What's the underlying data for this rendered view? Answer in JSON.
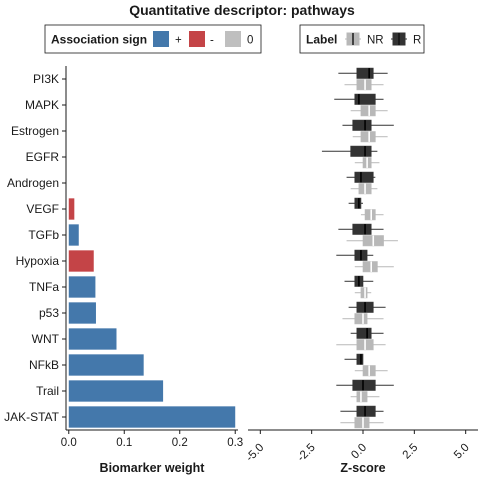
{
  "title": "Quantitative descriptor: pathways",
  "colors": {
    "positive": "#4478ab",
    "negative": "#c44447",
    "zero": "#bfbfbf",
    "R": "#333333",
    "NR": "#b8b8b8"
  },
  "legend_sign": {
    "title": "Association sign",
    "items": [
      {
        "label": "+",
        "color": "#4478ab"
      },
      {
        "label": "-",
        "color": "#c44447"
      },
      {
        "label": "0",
        "color": "#bfbfbf"
      }
    ]
  },
  "legend_label": {
    "title": "Label",
    "items": [
      {
        "label": "NR",
        "color": "#b8b8b8"
      },
      {
        "label": "R",
        "color": "#333333"
      }
    ]
  },
  "chart_data": [
    {
      "type": "bar",
      "orientation": "horizontal",
      "categories": [
        "PI3K",
        "MAPK",
        "Estrogen",
        "EGFR",
        "Androgen",
        "VEGF",
        "TGFb",
        "Hypoxia",
        "TNFa",
        "p53",
        "WNT",
        "NFkB",
        "Trail",
        "JAK-STAT"
      ],
      "values": [
        0,
        0,
        0,
        0,
        0,
        0.01,
        0.018,
        0.045,
        0.048,
        0.049,
        0.086,
        0.135,
        0.17,
        0.3
      ],
      "signs": [
        "0",
        "0",
        "0",
        "0",
        "0",
        "-",
        "+",
        "-",
        "+",
        "+",
        "+",
        "+",
        "+",
        "+"
      ],
      "xlabel": "Biomarker weight",
      "xlim": [
        -0.005,
        0.305
      ],
      "xticks": [
        "0.0",
        "0.1",
        "0.2",
        "0.3"
      ],
      "xtick_values": [
        0,
        0.1,
        0.2,
        0.3
      ]
    },
    {
      "type": "boxplot",
      "orientation": "horizontal",
      "categories": [
        "PI3K",
        "MAPK",
        "Estrogen",
        "EGFR",
        "Androgen",
        "VEGF",
        "TGFb",
        "Hypoxia",
        "TNFa",
        "p53",
        "WNT",
        "NFkB",
        "Trail",
        "JAK-STAT"
      ],
      "xlabel": "Z-score",
      "xlim": [
        -5.6,
        5.6
      ],
      "xticks": [
        "-5.0",
        "-2.5",
        "0.0",
        "2.5",
        "5.0"
      ],
      "xtick_values": [
        -5,
        -2.5,
        0,
        2.5,
        5
      ],
      "series": [
        {
          "name": "R",
          "boxes": [
            {
              "min": -1.2,
              "q1": -0.3,
              "median": 0.3,
              "q3": 0.5,
              "max": 1.2
            },
            {
              "min": -1.4,
              "q1": -0.4,
              "median": -0.2,
              "q3": 0.6,
              "max": 1.0
            },
            {
              "min": -1.0,
              "q1": -0.5,
              "median": 0.1,
              "q3": 0.4,
              "max": 1.5
            },
            {
              "min": -2.0,
              "q1": -0.6,
              "median": 0.1,
              "q3": 0.4,
              "max": 0.7
            },
            {
              "min": -0.8,
              "q1": -0.4,
              "median": -0.1,
              "q3": 0.5,
              "max": 0.6
            },
            {
              "min": -0.7,
              "q1": -0.4,
              "median": -0.2,
              "q3": -0.1,
              "max": 0.0
            },
            {
              "min": -1.2,
              "q1": -0.5,
              "median": 0.1,
              "q3": 0.4,
              "max": 1.0
            },
            {
              "min": -1.3,
              "q1": -0.4,
              "median": -0.1,
              "q3": 0.2,
              "max": 0.5
            },
            {
              "min": -0.9,
              "q1": -0.4,
              "median": -0.2,
              "q3": 0.0,
              "max": 0.5
            },
            {
              "min": -0.7,
              "q1": -0.3,
              "median": 0.1,
              "q3": 0.5,
              "max": 1.1
            },
            {
              "min": -0.6,
              "q1": -0.3,
              "median": 0.2,
              "q3": 0.4,
              "max": 1.0
            },
            {
              "min": -0.9,
              "q1": -0.3,
              "median": -0.1,
              "q3": 0.0,
              "max": 0.0
            },
            {
              "min": -1.3,
              "q1": -0.5,
              "median": 0.0,
              "q3": 0.6,
              "max": 1.5
            },
            {
              "min": -1.1,
              "q1": -0.3,
              "median": 0.1,
              "q3": 0.6,
              "max": 1.0
            }
          ]
        },
        {
          "name": "NR",
          "boxes": [
            {
              "min": -0.9,
              "q1": -0.3,
              "median": 0.1,
              "q3": 0.4,
              "max": 1.0
            },
            {
              "min": -0.6,
              "q1": -0.1,
              "median": 0.3,
              "q3": 0.6,
              "max": 1.2
            },
            {
              "min": -0.5,
              "q1": -0.1,
              "median": 0.3,
              "q3": 0.6,
              "max": 1.2
            },
            {
              "min": -0.4,
              "q1": 0.0,
              "median": 0.2,
              "q3": 0.4,
              "max": 0.8
            },
            {
              "min": -0.6,
              "q1": -0.2,
              "median": 0.1,
              "q3": 0.4,
              "max": 0.7
            },
            {
              "min": -0.1,
              "q1": 0.1,
              "median": 0.4,
              "q3": 0.6,
              "max": 1.0
            },
            {
              "min": -0.8,
              "q1": 0.0,
              "median": 0.5,
              "q3": 1.0,
              "max": 1.7
            },
            {
              "min": -0.4,
              "q1": 0.0,
              "median": 0.4,
              "q3": 0.7,
              "max": 1.5
            },
            {
              "min": -0.4,
              "q1": -0.1,
              "median": 0.1,
              "q3": 0.2,
              "max": 0.4
            },
            {
              "min": -1.0,
              "q1": -0.4,
              "median": 0.0,
              "q3": 0.2,
              "max": 1.0
            },
            {
              "min": -1.3,
              "q1": -0.3,
              "median": 0.1,
              "q3": 0.5,
              "max": 1.1
            },
            {
              "min": -0.4,
              "q1": 0.0,
              "median": 0.3,
              "q3": 0.6,
              "max": 1.2
            },
            {
              "min": -0.6,
              "q1": -0.3,
              "median": -0.1,
              "q3": 0.2,
              "max": 0.8
            },
            {
              "min": -1.1,
              "q1": -0.4,
              "median": 0.0,
              "q3": 0.3,
              "max": 1.0
            }
          ]
        }
      ]
    }
  ]
}
